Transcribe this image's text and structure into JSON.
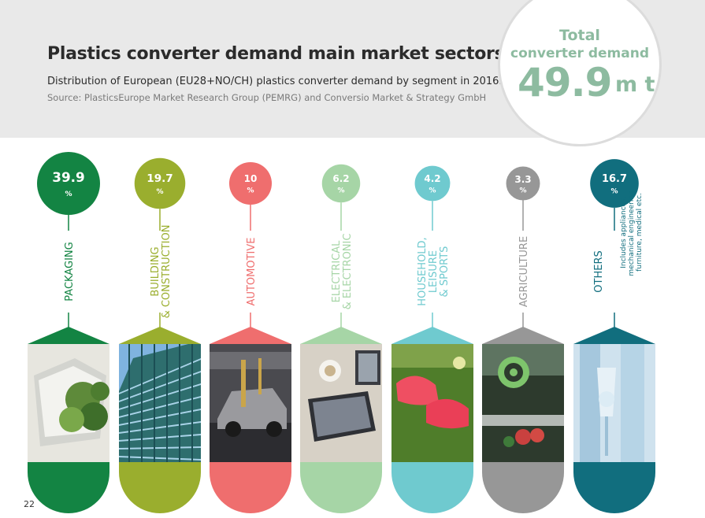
{
  "header": {
    "title": "Plastics converter demand main market sectors",
    "subtitle": "Distribution of European (EU28+NO/CH) plastics converter demand by segment in 2016.",
    "source": "Source: PlasticsEurope Market Research Group (PEMRG) and Conversio Market & Strategy GmbH"
  },
  "total": {
    "label_line1": "Total",
    "label_line2": "converter demand",
    "value": "49.9",
    "unit": "m t"
  },
  "page_number": "22",
  "chart_data": {
    "type": "bubble-infographic",
    "unit": "%",
    "categories": [
      {
        "label_lines": [
          "PACKAGING"
        ],
        "value": 39.9,
        "color": "#138443",
        "photo": "packaging-photo"
      },
      {
        "label_lines": [
          "BUILDING",
          "& CONSTRUCTION"
        ],
        "value": 19.7,
        "color": "#9aae2e",
        "photo": "building-photo"
      },
      {
        "label_lines": [
          "AUTOMOTIVE"
        ],
        "value": 10,
        "color": "#ef6e6e",
        "photo": "automotive-photo"
      },
      {
        "label_lines": [
          "ELECTRICAL",
          "& ELECTRONIC"
        ],
        "value": 6.2,
        "color": "#a6d5a6",
        "photo": "electronics-photo"
      },
      {
        "label_lines": [
          "HOUSEHOLD,",
          "LEISURE",
          "& SPORTS"
        ],
        "value": 4.2,
        "color": "#6fcacf",
        "photo": "sports-photo"
      },
      {
        "label_lines": [
          "AGRICULTURE"
        ],
        "value": 3.3,
        "color": "#979797",
        "photo": "agriculture-photo"
      },
      {
        "label_lines": [
          "OTHERS"
        ],
        "note_lines": [
          "Includes appliances,",
          "mechanical engineering,",
          "furniture, medical etc."
        ],
        "value": 16.7,
        "color": "#116e7e",
        "photo": "others-photo"
      }
    ]
  }
}
